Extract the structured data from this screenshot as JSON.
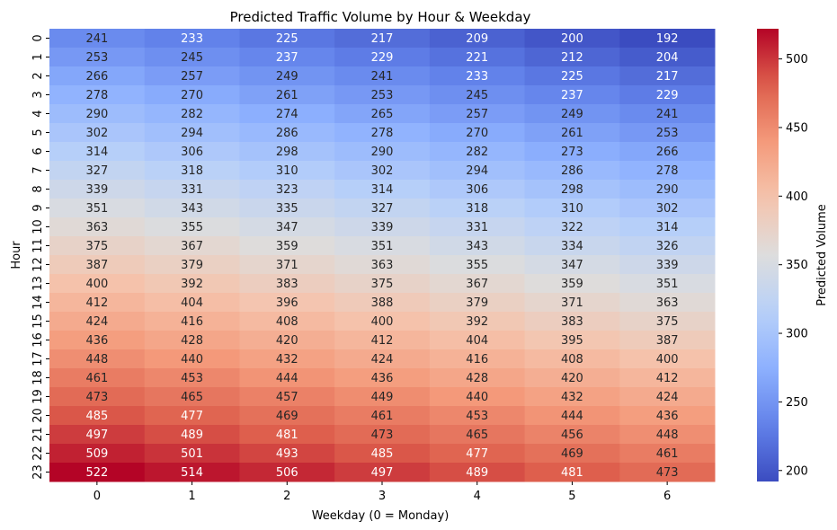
{
  "chart_data": {
    "type": "heatmap",
    "title": "Predicted Traffic Volume by Hour & Weekday",
    "xlabel": "Weekday (0 = Monday)",
    "ylabel": "Hour",
    "x_categories": [
      "0",
      "1",
      "2",
      "3",
      "4",
      "5",
      "6"
    ],
    "y_categories": [
      "0",
      "1",
      "2",
      "3",
      "4",
      "5",
      "6",
      "7",
      "8",
      "9",
      "10",
      "11",
      "12",
      "13",
      "14",
      "15",
      "16",
      "17",
      "18",
      "19",
      "20",
      "21",
      "22",
      "23"
    ],
    "values": [
      [
        241,
        233,
        225,
        217,
        209,
        200,
        192
      ],
      [
        253,
        245,
        237,
        229,
        221,
        212,
        204
      ],
      [
        266,
        257,
        249,
        241,
        233,
        225,
        217
      ],
      [
        278,
        270,
        261,
        253,
        245,
        237,
        229
      ],
      [
        290,
        282,
        274,
        265,
        257,
        249,
        241
      ],
      [
        302,
        294,
        286,
        278,
        270,
        261,
        253
      ],
      [
        314,
        306,
        298,
        290,
        282,
        273,
        266
      ],
      [
        327,
        318,
        310,
        302,
        294,
        286,
        278
      ],
      [
        339,
        331,
        323,
        314,
        306,
        298,
        290
      ],
      [
        351,
        343,
        335,
        327,
        318,
        310,
        302
      ],
      [
        363,
        355,
        347,
        339,
        331,
        322,
        314
      ],
      [
        375,
        367,
        359,
        351,
        343,
        334,
        326
      ],
      [
        387,
        379,
        371,
        363,
        355,
        347,
        339
      ],
      [
        400,
        392,
        383,
        375,
        367,
        359,
        351
      ],
      [
        412,
        404,
        396,
        388,
        379,
        371,
        363
      ],
      [
        424,
        416,
        408,
        400,
        392,
        383,
        375
      ],
      [
        436,
        428,
        420,
        412,
        404,
        395,
        387
      ],
      [
        448,
        440,
        432,
        424,
        416,
        408,
        400
      ],
      [
        461,
        453,
        444,
        436,
        428,
        420,
        412
      ],
      [
        473,
        465,
        457,
        449,
        440,
        432,
        424
      ],
      [
        485,
        477,
        469,
        461,
        453,
        444,
        436
      ],
      [
        497,
        489,
        481,
        473,
        465,
        456,
        448
      ],
      [
        509,
        501,
        493,
        485,
        477,
        469,
        461
      ],
      [
        522,
        514,
        506,
        497,
        489,
        481,
        473
      ]
    ],
    "colormap": "coolwarm",
    "vmin": 192,
    "vmax": 522,
    "colorbar": {
      "label": "Predicted Volume",
      "ticks": [
        200,
        250,
        300,
        350,
        400,
        450,
        500
      ]
    }
  }
}
